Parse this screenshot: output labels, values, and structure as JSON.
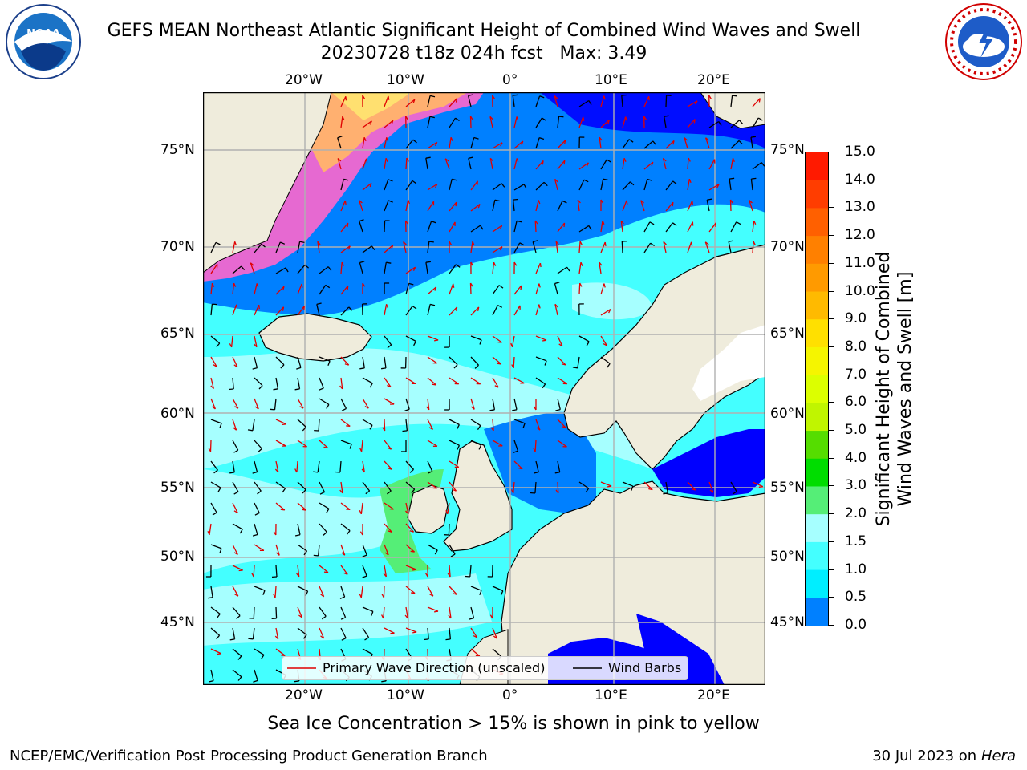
{
  "title": {
    "line1": "GEFS MEAN Northeast Atlantic Significant Height of Combined Wind Waves and Swell",
    "line2": "20230728 t18z 024h fcst   Max: 3.49"
  },
  "logos": {
    "left": "noaa-logo",
    "right": "national-weather-service-logo"
  },
  "map": {
    "lon_labels_top": [
      "20°W",
      "10°W",
      "0°",
      "10°E",
      "20°E"
    ],
    "lon_labels_bottom": [
      "20°W",
      "10°W",
      "0°",
      "10°E",
      "20°E"
    ],
    "lat_labels_left": [
      "75°N",
      "70°N",
      "65°N",
      "60°N",
      "55°N",
      "50°N",
      "45°N"
    ],
    "lat_labels_right": [
      "75°N",
      "70°N",
      "65°N",
      "60°N",
      "55°N",
      "50°N",
      "45°N"
    ],
    "colors": {
      "land": "#efecdc",
      "ocean_low": "#00a0ff",
      "grid": "#b0b0b0"
    }
  },
  "legend": {
    "wave_label": "Primary Wave Direction (unscaled)",
    "wind_label": "Wind Barbs",
    "wave_color": "#e00000",
    "wind_color": "#000000"
  },
  "colorbar": {
    "title_line1": "Significant Height of Combined",
    "title_line2": "Wind Waves and Swell [m]",
    "labels": [
      "15.0",
      "14.0",
      "13.0",
      "12.0",
      "11.0",
      "10.0",
      "9.0",
      "8.0",
      "7.0",
      "6.0",
      "5.0",
      "4.0",
      "3.0",
      "2.0",
      "1.5",
      "1.0",
      "0.5",
      "0.0"
    ],
    "colors": [
      "#ff1a00",
      "#ff3d00",
      "#ff6000",
      "#ff8000",
      "#ff9a00",
      "#ffba00",
      "#ffe000",
      "#f5f500",
      "#dcff00",
      "#c0f500",
      "#55dd00",
      "#00dd00",
      "#55ee77",
      "#a6ffff",
      "#44ffff",
      "#00eeff",
      "#0080ff",
      "#0000ff"
    ]
  },
  "footer": {
    "note": "Sea Ice Concentration > 15% is shown in pink to yellow",
    "credit": "NCEP/EMC/Verification Post Processing Product Generation Branch",
    "date": "30 Jul 2023 on",
    "machine": "Hera"
  }
}
